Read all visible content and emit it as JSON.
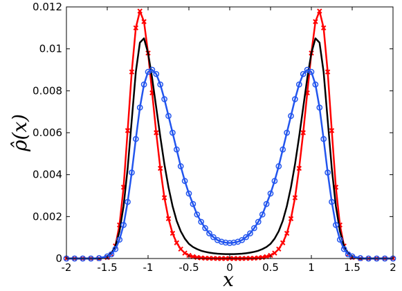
{
  "chart_data": {
    "type": "line",
    "title": "",
    "xlabel": "x",
    "ylabel": "ρ̂(x)",
    "xlim": [
      -2,
      2
    ],
    "ylim": [
      0,
      0.012
    ],
    "xticks": [
      -2,
      -1.5,
      -1,
      -0.5,
      0,
      0.5,
      1,
      1.5,
      2
    ],
    "xtick_labels": [
      "-2",
      "-1.5",
      "-1",
      "-0.5",
      "0",
      "0.5",
      "1",
      "1.5",
      "2"
    ],
    "yticks": [
      0,
      0.002,
      0.004,
      0.006,
      0.008,
      0.01,
      0.012
    ],
    "ytick_labels": [
      "0",
      "0.002",
      "0.004",
      "0.006",
      "0.008",
      "0.01",
      "0.012"
    ],
    "grid": false,
    "legend": "none",
    "x": [
      -2.0,
      -1.9,
      -1.8,
      -1.7,
      -1.6,
      -1.5,
      -1.45,
      -1.4,
      -1.35,
      -1.3,
      -1.25,
      -1.2,
      -1.15,
      -1.1,
      -1.05,
      -1.0,
      -0.95,
      -0.9,
      -0.85,
      -0.8,
      -0.75,
      -0.7,
      -0.65,
      -0.6,
      -0.55,
      -0.5,
      -0.45,
      -0.4,
      -0.35,
      -0.3,
      -0.25,
      -0.2,
      -0.15,
      -0.1,
      -0.05,
      0.0,
      0.05,
      0.1,
      0.15,
      0.2,
      0.25,
      0.3,
      0.35,
      0.4,
      0.45,
      0.5,
      0.55,
      0.6,
      0.65,
      0.7,
      0.75,
      0.8,
      0.85,
      0.9,
      0.95,
      1.0,
      1.05,
      1.1,
      1.15,
      1.2,
      1.25,
      1.3,
      1.35,
      1.4,
      1.45,
      1.5,
      1.6,
      1.7,
      1.8,
      1.9,
      2.0
    ],
    "series": [
      {
        "color": "#ff0000",
        "marker": "x",
        "values": [
          0,
          0,
          0,
          0,
          0,
          5e-05,
          0.0002,
          0.0006,
          0.0016,
          0.0034,
          0.0061,
          0.0089,
          0.011,
          0.0118,
          0.0113,
          0.0098,
          0.0079,
          0.006,
          0.0043,
          0.0029,
          0.0019,
          0.0012,
          0.00075,
          0.00045,
          0.00026,
          0.00015,
          9e-05,
          5e-05,
          3e-05,
          1.5e-05,
          1e-05,
          5e-06,
          0,
          0,
          0,
          0,
          0,
          0,
          0,
          5e-06,
          1e-05,
          1.5e-05,
          3e-05,
          5e-05,
          9e-05,
          0.00015,
          0.00026,
          0.00045,
          0.00075,
          0.0012,
          0.0019,
          0.0029,
          0.0043,
          0.006,
          0.0079,
          0.0098,
          0.0113,
          0.0118,
          0.011,
          0.0089,
          0.0061,
          0.0034,
          0.0016,
          0.0006,
          0.0002,
          5e-05,
          0,
          0,
          0,
          0,
          0
        ]
      },
      {
        "color": "#000000",
        "marker": "none",
        "values": [
          0,
          0,
          0,
          0,
          0,
          0.0001,
          0.00025,
          0.0006,
          0.0013,
          0.0025,
          0.0043,
          0.0066,
          0.0089,
          0.0103,
          0.0105,
          0.0098,
          0.0086,
          0.0072,
          0.0058,
          0.0045,
          0.0034,
          0.0025,
          0.0018,
          0.0013,
          0.00095,
          0.0007,
          0.00055,
          0.00045,
          0.00037,
          0.00032,
          0.00028,
          0.00025,
          0.00023,
          0.00022,
          0.00021,
          0.00021,
          0.00021,
          0.00022,
          0.00023,
          0.00025,
          0.00028,
          0.00032,
          0.00037,
          0.00045,
          0.00055,
          0.0007,
          0.00095,
          0.0013,
          0.0018,
          0.0025,
          0.0034,
          0.0045,
          0.0058,
          0.0072,
          0.0086,
          0.0098,
          0.0105,
          0.0103,
          0.0089,
          0.0066,
          0.0043,
          0.0025,
          0.0013,
          0.0006,
          0.00025,
          0.0001,
          0,
          0,
          0,
          0,
          0
        ]
      },
      {
        "color": "#2255ee",
        "marker": "o",
        "values": [
          0,
          0,
          0,
          0,
          2e-05,
          0.0001,
          0.0002,
          0.00045,
          0.0009,
          0.0016,
          0.0027,
          0.0041,
          0.0057,
          0.0072,
          0.0083,
          0.0089,
          0.009,
          0.0088,
          0.0083,
          0.0076,
          0.0068,
          0.006,
          0.0052,
          0.0044,
          0.0037,
          0.0031,
          0.0026,
          0.0021,
          0.00175,
          0.00145,
          0.0012,
          0.00102,
          0.00088,
          0.0008,
          0.00076,
          0.00074,
          0.00076,
          0.0008,
          0.00088,
          0.00102,
          0.0012,
          0.00145,
          0.00175,
          0.0021,
          0.0026,
          0.0031,
          0.0037,
          0.0044,
          0.0052,
          0.006,
          0.0068,
          0.0076,
          0.0083,
          0.0088,
          0.009,
          0.0089,
          0.0083,
          0.0072,
          0.0057,
          0.0041,
          0.0027,
          0.0016,
          0.0009,
          0.00045,
          0.0002,
          0.0001,
          2e-05,
          0,
          0,
          0,
          0
        ]
      }
    ]
  }
}
